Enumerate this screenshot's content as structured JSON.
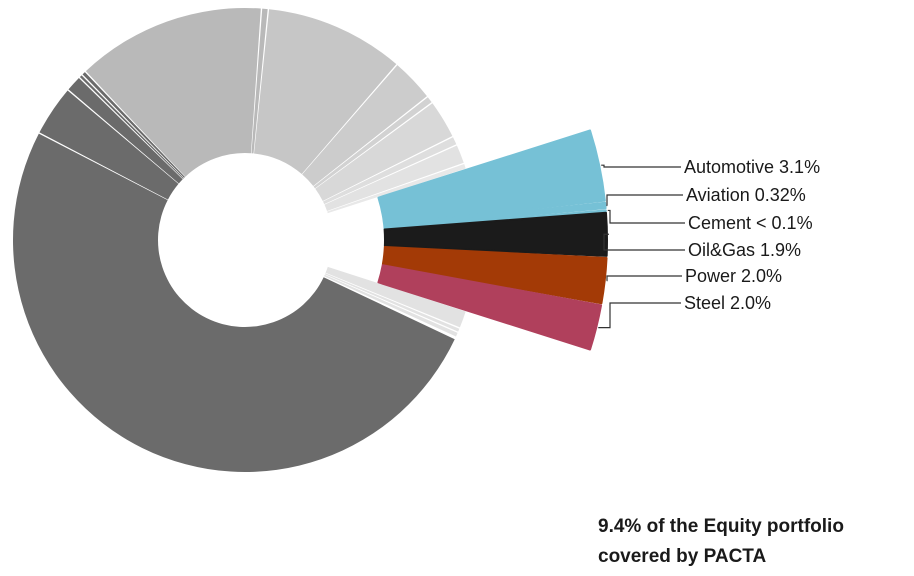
{
  "chart_data": {
    "type": "pie",
    "title": "",
    "highlighted_sectors": [
      {
        "label": "Automotive 3.1%",
        "name": "Automotive",
        "value": 3.1,
        "color": "#76c1d6"
      },
      {
        "label": "Aviation 0.32%",
        "name": "Aviation",
        "value": 0.32,
        "color": "#76c1d6"
      },
      {
        "label": "Cement < 0.1%",
        "name": "Cement",
        "value": 0.1,
        "color": "#76c1d6"
      },
      {
        "label": "Oil&Gas 1.9%",
        "name": "Oil&Gas",
        "value": 1.9,
        "color": "#1b1b1b"
      },
      {
        "label": "Power 2.0%",
        "name": "Power",
        "value": 2.0,
        "color": "#a33a06"
      },
      {
        "label": "Steel 2.0%",
        "name": "Steel",
        "value": 2.0,
        "color": "#b0405c"
      }
    ],
    "other_slices": [
      {
        "value": 1.2,
        "color": "#e2e2e2"
      },
      {
        "value": 0.3,
        "color": "#e2e2e2"
      },
      {
        "value": 0.35,
        "color": "#e2e2e2"
      },
      {
        "value": 0.1,
        "color": "#ffffff"
      },
      {
        "value": 48.3,
        "color": "#6b6b6b"
      },
      {
        "value": 3.4,
        "color": "#6b6b6b"
      },
      {
        "value": 1.1,
        "color": "#6b6b6b"
      },
      {
        "value": 0.25,
        "color": "#6b6b6b"
      },
      {
        "value": 0.3,
        "color": "#6b6b6b"
      },
      {
        "value": 12.6,
        "color": "#b9b9b9"
      },
      {
        "value": 0.45,
        "color": "#b9b9b9"
      },
      {
        "value": 9.3,
        "color": "#c6c6c6"
      },
      {
        "value": 2.9,
        "color": "#cccccc"
      },
      {
        "value": 0.5,
        "color": "#d2d2d2"
      },
      {
        "value": 2.6,
        "color": "#d8d8d8"
      },
      {
        "value": 0.6,
        "color": "#dedede"
      },
      {
        "value": 1.3,
        "color": "#e2e2e2"
      },
      {
        "value": 0.4,
        "color": "#e8e8e8"
      }
    ],
    "caption": [
      "9.4% of the Equity portfolio",
      "covered by PACTA"
    ]
  }
}
